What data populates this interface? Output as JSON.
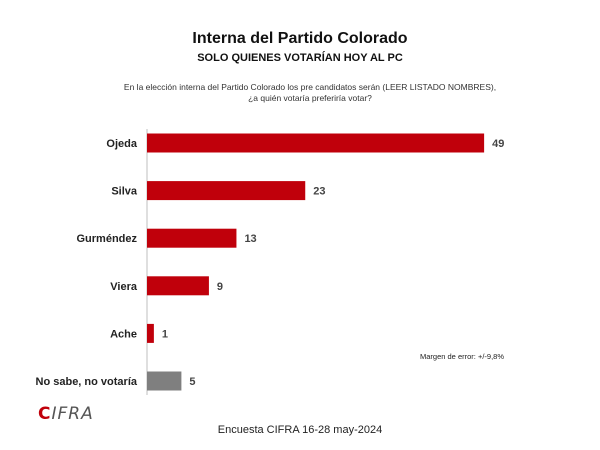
{
  "header": {
    "title": "Interna del Partido Colorado",
    "subtitle": "SOLO QUIENES VOTARÍAN HOY AL PC",
    "question_line1": "En la elección interna del Partido Colorado los pre candidatos serán (LEER LISTADO NOMBRES),",
    "question_line2": "¿a quién votaría preferiría votar?"
  },
  "chart_data": {
    "type": "bar",
    "orientation": "horizontal",
    "categories": [
      "Ojeda",
      "Silva",
      "Gurméndez",
      "Viera",
      "Ache",
      "No sabe, no votaría"
    ],
    "values": [
      49,
      23,
      13,
      9,
      1,
      5
    ],
    "colors": [
      "#c0000b",
      "#c0000b",
      "#c0000b",
      "#c0000b",
      "#c0000b",
      "#7f7f7f"
    ],
    "xlim": [
      0,
      50
    ]
  },
  "notes": {
    "margin_of_error": "Margen de error: +/-9,8%"
  },
  "footer": {
    "logo_mark": "C",
    "logo_text": "IFRA",
    "source": "Encuesta CIFRA 16-28 may-2024"
  }
}
